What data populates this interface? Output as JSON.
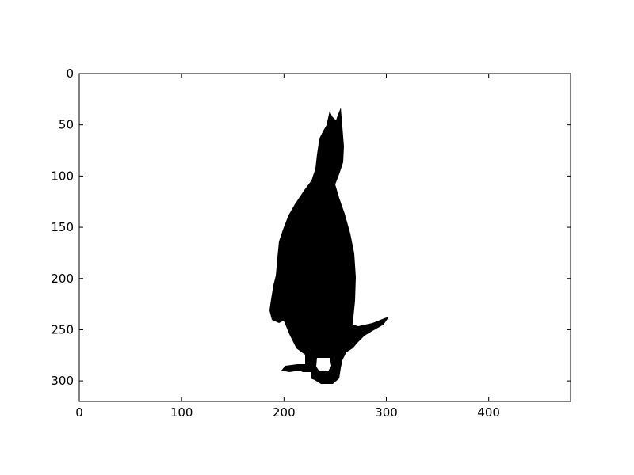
{
  "figure": {
    "background_color": "#ffffff",
    "mask_color": "#000000",
    "axes_frame_color": "#000000",
    "image_content": "binary segmentation mask of a penguin silhouette (side view, beak pointing up) on white background",
    "axes": {
      "xlim": [
        0,
        480
      ],
      "ylim": [
        320,
        0
      ],
      "x_ticks": [
        0,
        100,
        200,
        300,
        400
      ],
      "y_ticks": [
        0,
        50,
        100,
        150,
        200,
        250,
        300
      ],
      "x_tick_labels": [
        "0",
        "100",
        "200",
        "300",
        "400"
      ],
      "y_tick_labels": [
        "0",
        "50",
        "100",
        "150",
        "200",
        "250",
        "300"
      ],
      "y_inverted": true,
      "grid": false
    }
  }
}
